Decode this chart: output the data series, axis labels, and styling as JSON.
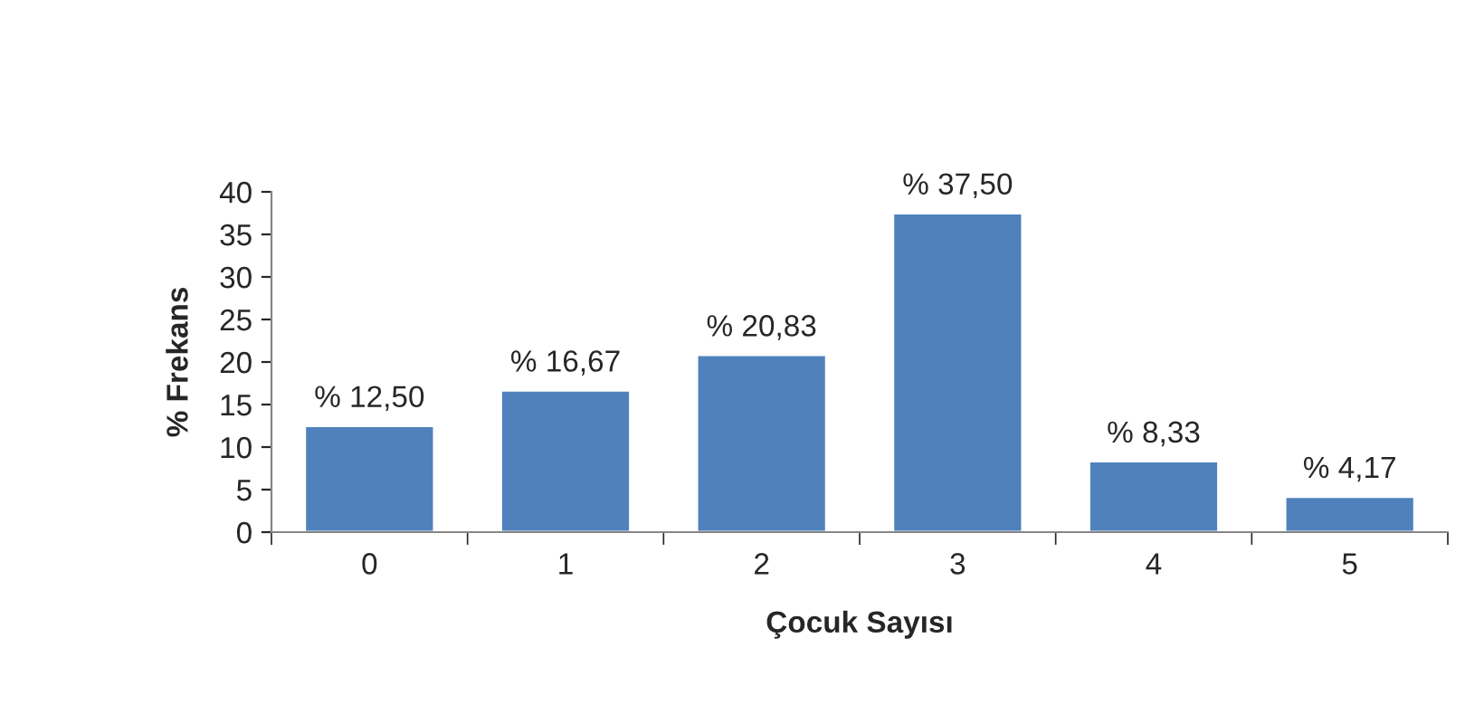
{
  "chart_data": {
    "type": "bar",
    "xlabel": "Çocuk Sayısı",
    "ylabel": "% Frekans",
    "categories": [
      "0",
      "1",
      "2",
      "3",
      "4",
      "5"
    ],
    "values": [
      12.5,
      16.67,
      20.83,
      37.5,
      8.33,
      4.17
    ],
    "value_labels": [
      "% 12,50",
      "% 16,67",
      "% 20,83",
      "% 37,50",
      "% 8,33",
      "% 4,17"
    ],
    "color": "#4f81bd",
    "ylim": [
      0,
      40
    ],
    "yticks": [
      0,
      5,
      10,
      15,
      20,
      25,
      30,
      35,
      40
    ],
    "grid": false,
    "legend": false
  }
}
